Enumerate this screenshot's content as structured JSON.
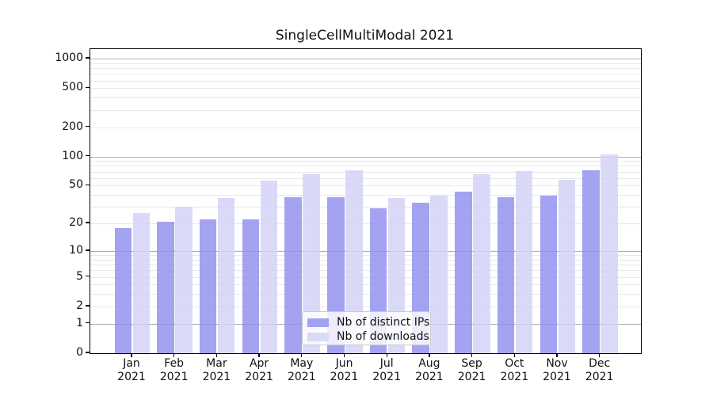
{
  "title": "SingleCellMultiModal 2021",
  "legend": {
    "items": [
      {
        "label": "Nb of distinct IPs",
        "color": "#8f8fee"
      },
      {
        "label": "Nb of downloads",
        "color": "#d2d2f6"
      }
    ]
  },
  "y_axis": {
    "tick_values": [
      0,
      1,
      2,
      5,
      10,
      20,
      50,
      100,
      200,
      500,
      1000
    ]
  },
  "x_axis": {
    "months": [
      "Jan",
      "Feb",
      "Mar",
      "Apr",
      "May",
      "Jun",
      "Jul",
      "Aug",
      "Sep",
      "Oct",
      "Nov",
      "Dec"
    ],
    "year": "2021"
  },
  "chart_data": {
    "type": "bar",
    "title": "SingleCellMultiModal 2021",
    "categories": [
      "Jan 2021",
      "Feb 2021",
      "Mar 2021",
      "Apr 2021",
      "May 2021",
      "Jun 2021",
      "Jul 2021",
      "Aug 2021",
      "Sep 2021",
      "Oct 2021",
      "Nov 2021",
      "Dec 2021"
    ],
    "series": [
      {
        "name": "Nb of distinct IPs",
        "color": "#8f8fee",
        "values": [
          18,
          21,
          22,
          22,
          38,
          38,
          29,
          33,
          43,
          38,
          39,
          72
        ]
      },
      {
        "name": "Nb of downloads",
        "color": "#d2d2f6",
        "values": [
          26,
          30,
          37,
          56,
          65,
          72,
          37,
          39,
          66,
          71,
          58,
          104
        ]
      }
    ],
    "yscale": "log1p",
    "y_ticks": [
      0,
      1,
      2,
      5,
      10,
      20,
      50,
      100,
      200,
      500,
      1000
    ],
    "ylim": [
      0,
      1230
    ],
    "grid": true,
    "grid_major_at": [
      1,
      10,
      100,
      1000
    ],
    "legend_position": "lower center",
    "legend_swatch_colors": [
      "#a2a2f2",
      "#dadaf8"
    ]
  }
}
